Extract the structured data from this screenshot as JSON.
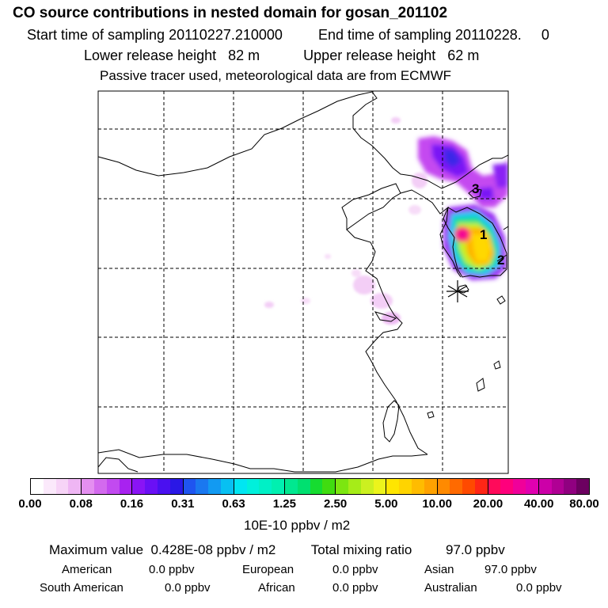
{
  "header": {
    "title": "CO  source contributions in nested domain for gosan_201102",
    "start_label": "Start time of sampling",
    "start_value": "20110227.210000",
    "end_label": "End time of sampling",
    "end_value": "20110228.",
    "end_suffix": "0",
    "lower_label": "Lower release height",
    "lower_value": "82 m",
    "upper_label": "Upper release height",
    "upper_value": "62 m",
    "note": "Passive tracer used, meteorological data are from ECMWF"
  },
  "map": {
    "source_labels": [
      "1",
      "2",
      "3"
    ],
    "receptor_symbol": "asterisk"
  },
  "colorbar": {
    "ticks": [
      "0.00",
      "0.08",
      "0.16",
      "0.31",
      "0.63",
      "1.25",
      "2.50",
      "5.00",
      "10.00",
      "20.00",
      "40.00",
      "80.00"
    ],
    "units": "10E-10 ppbv / m2",
    "colors": [
      [
        "#ffffff",
        "#fbe9fb",
        "#f7d4f7",
        "#efb6f4"
      ],
      [
        "#e48ff0",
        "#d36aee",
        "#c24af0",
        "#a822f0"
      ],
      [
        "#8a14f5",
        "#6a10f5",
        "#4a10f0",
        "#2a18e6"
      ],
      [
        "#1f55f0",
        "#1a78f0",
        "#129af2",
        "#08c0f2"
      ],
      [
        "#00e6f2",
        "#00f0dc",
        "#00f0c6",
        "#00f0b0"
      ],
      [
        "#00e890",
        "#00e070",
        "#16dc30",
        "#40dc10"
      ],
      [
        "#7ce610",
        "#a6ec18",
        "#ccf020",
        "#ecf41c"
      ],
      [
        "#ffe600",
        "#ffd400",
        "#ffbc00",
        "#ffa200"
      ],
      [
        "#ff8a00",
        "#ff6a00",
        "#ff4a00",
        "#ff2616"
      ],
      [
        "#ff0a5a",
        "#ff007c",
        "#f0009a",
        "#e000b0"
      ],
      [
        "#cc00a8",
        "#b00094",
        "#900080",
        "#6c0060"
      ]
    ]
  },
  "summary": {
    "max_label": "Maximum value",
    "max_value": "0.428E-08 ppbv / m2",
    "total_label": "Total mixing ratio",
    "total_value": "97.0 ppbv",
    "regions": [
      {
        "name": "American",
        "value": "0.0 ppbv"
      },
      {
        "name": "European",
        "value": "0.0 ppbv"
      },
      {
        "name": "Asian",
        "value": "97.0 ppbv"
      },
      {
        "name": "South American",
        "value": "0.0 ppbv"
      },
      {
        "name": "African",
        "value": "0.0 ppbv"
      },
      {
        "name": "Australian",
        "value": "0.0 ppbv"
      }
    ]
  }
}
